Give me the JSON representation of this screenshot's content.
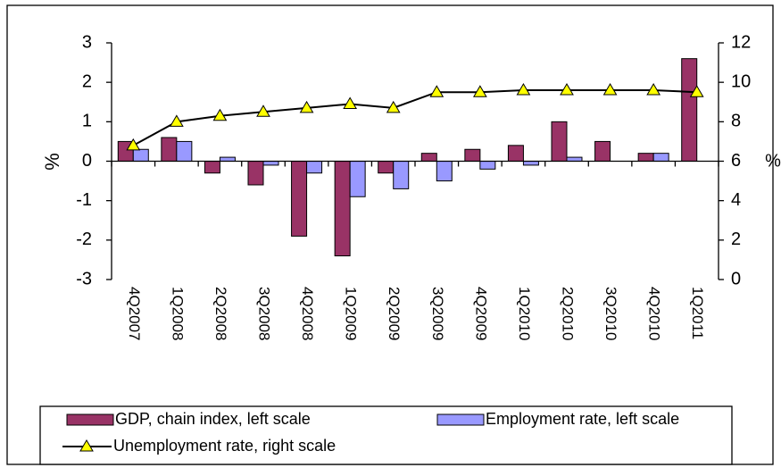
{
  "chart_data": {
    "type": "bar",
    "categories": [
      "4Q2007",
      "1Q2008",
      "2Q2008",
      "3Q2008",
      "4Q2008",
      "1Q2009",
      "2Q2009",
      "3Q2009",
      "4Q2009",
      "1Q2010",
      "2Q2010",
      "3Q2010",
      "4Q2010",
      "1Q2011"
    ],
    "series": [
      {
        "name": "GDP, chain index, left scale",
        "color": "#993366",
        "values": [
          0.5,
          0.6,
          -0.3,
          -0.6,
          -1.9,
          -2.4,
          -0.3,
          0.2,
          0.3,
          0.4,
          1.0,
          0.5,
          0.2,
          2.6
        ]
      },
      {
        "name": "Employment rate, left scale",
        "color": "#9999ff",
        "values": [
          0.3,
          0.5,
          0.1,
          -0.1,
          -0.3,
          -0.9,
          -0.7,
          -0.5,
          -0.2,
          -0.1,
          0.1,
          0,
          0.2,
          0
        ]
      },
      {
        "name": "Unemployment rate, right scale",
        "color": "#000000",
        "type": "line",
        "axis": "y2",
        "marker": "triangle",
        "marker_color": "#ffff00",
        "values": [
          6.8,
          8.0,
          8.3,
          8.5,
          8.7,
          8.9,
          8.7,
          9.5,
          9.5,
          9.6,
          9.6,
          9.6,
          9.6,
          9.5
        ]
      }
    ],
    "ylabel": "%",
    "y2label": "%",
    "ylim": [
      -3,
      3
    ],
    "yticks": [
      -3,
      -2,
      -1,
      0,
      1,
      2,
      3
    ],
    "y2lim": [
      0,
      12
    ],
    "y2ticks": [
      0,
      2,
      4,
      6,
      8,
      10,
      12
    ],
    "grid": false,
    "legend": "bottom"
  }
}
